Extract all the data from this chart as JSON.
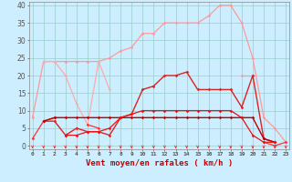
{
  "x": [
    0,
    1,
    2,
    3,
    4,
    5,
    6,
    7,
    8,
    9,
    10,
    11,
    12,
    13,
    14,
    15,
    16,
    17,
    18,
    19,
    20,
    21,
    22,
    23
  ],
  "series": [
    {
      "color": "#ff9999",
      "lw": 0.9,
      "values": [
        8,
        24,
        24,
        24,
        24,
        24,
        24,
        25,
        27,
        28,
        32,
        32,
        35,
        35,
        35,
        35,
        37,
        40,
        40,
        35,
        25,
        8,
        5,
        1
      ]
    },
    {
      "color": "#ffaaaa",
      "lw": 0.9,
      "values": [
        null,
        24,
        24,
        20,
        12,
        6,
        24,
        16,
        null,
        null,
        null,
        null,
        null,
        null,
        null,
        null,
        null,
        null,
        null,
        null,
        null,
        null,
        null,
        null
      ]
    },
    {
      "color": "#ff9999",
      "lw": 0.9,
      "values": [
        null,
        null,
        null,
        null,
        null,
        null,
        null,
        null,
        null,
        null,
        null,
        null,
        null,
        null,
        null,
        null,
        null,
        null,
        null,
        20,
        20,
        null,
        null,
        null
      ]
    },
    {
      "color": "#dd2222",
      "lw": 1.0,
      "values": [
        null,
        7,
        7,
        3,
        5,
        4,
        4,
        3,
        8,
        9,
        16,
        17,
        20,
        20,
        21,
        16,
        16,
        16,
        16,
        11,
        20,
        2,
        1,
        null
      ]
    },
    {
      "color": "#ff3333",
      "lw": 0.9,
      "values": [
        2,
        7,
        8,
        null,
        null,
        6,
        5,
        null,
        null,
        null,
        null,
        null,
        null,
        null,
        null,
        null,
        null,
        null,
        null,
        null,
        null,
        null,
        null,
        null
      ]
    },
    {
      "color": "#ff3333",
      "lw": 0.9,
      "values": [
        null,
        null,
        null,
        null,
        null,
        null,
        null,
        null,
        null,
        null,
        null,
        null,
        null,
        null,
        null,
        null,
        null,
        null,
        null,
        null,
        null,
        1,
        0,
        1
      ]
    },
    {
      "color": "#bb0000",
      "lw": 1.0,
      "values": [
        null,
        7,
        8,
        8,
        8,
        8,
        8,
        8,
        8,
        8,
        8,
        8,
        8,
        8,
        8,
        8,
        8,
        8,
        8,
        8,
        8,
        2,
        1,
        null
      ]
    },
    {
      "color": "#ee1111",
      "lw": 0.9,
      "values": [
        null,
        null,
        null,
        3,
        3,
        4,
        4,
        5,
        8,
        9,
        10,
        10,
        10,
        10,
        10,
        10,
        10,
        10,
        10,
        8,
        3,
        1,
        1,
        null
      ]
    }
  ],
  "xlabel": "Vent moyen/en rafales ( km/h )",
  "xlim": [
    -0.3,
    23.3
  ],
  "ylim": [
    -1,
    41
  ],
  "yticks": [
    0,
    5,
    10,
    15,
    20,
    25,
    30,
    35,
    40
  ],
  "xticks": [
    0,
    1,
    2,
    3,
    4,
    5,
    6,
    7,
    8,
    9,
    10,
    11,
    12,
    13,
    14,
    15,
    16,
    17,
    18,
    19,
    20,
    21,
    22,
    23
  ],
  "bg_color": "#cceeff",
  "grid_color": "#99cccc",
  "arrow_color": "#ee3333",
  "tick_color": "#cc0000",
  "xlabel_color": "#cc0000"
}
